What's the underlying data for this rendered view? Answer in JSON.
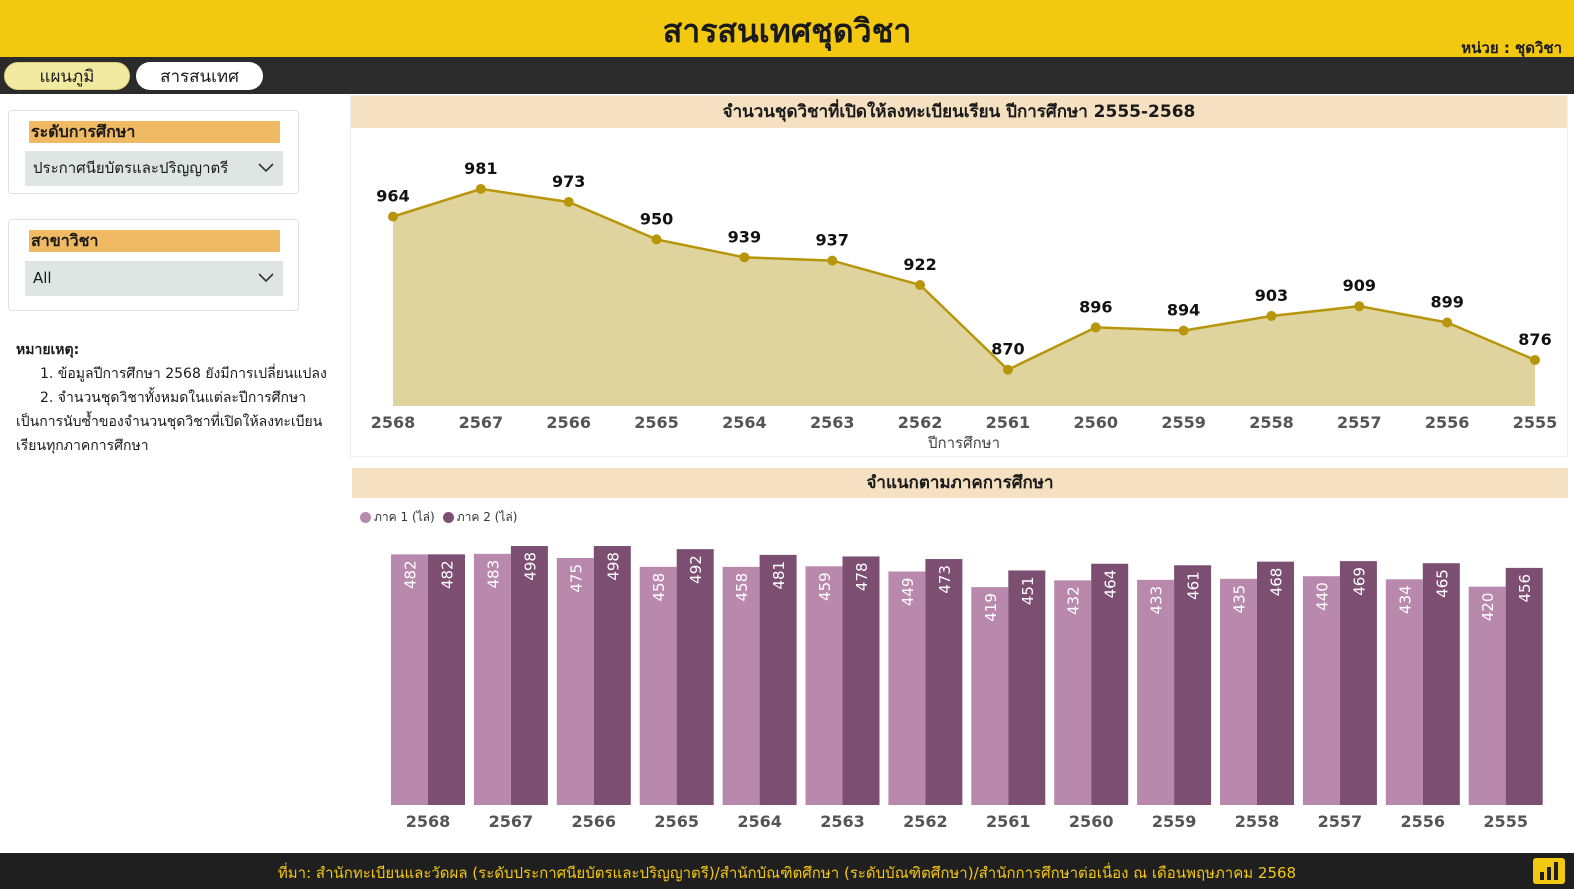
{
  "header": {
    "title": "สารสนเทศชุดวิชา",
    "unit": "หน่วย : ชุดวิชา"
  },
  "nav": {
    "tabs": [
      {
        "label": "แผนภูมิ"
      },
      {
        "label": "สารสนเทศ"
      }
    ]
  },
  "filters": {
    "level": {
      "label": "ระดับการศึกษา",
      "value": "ประกาศนียบัตรและปริญญาตรี"
    },
    "branch": {
      "label": "สาขาวิชา",
      "value": "All"
    }
  },
  "notes": {
    "title": "หมายเหตุ:",
    "items": [
      "1. ข้อมูลปีการศึกษา 2568 ยังมีการเปลี่ยนแปลง",
      "2. จำนวนชุดวิชาทั้งหมดในแต่ละปีการศึกษา เป็นการนับซ้ำของจำนวนชุดวิชาที่เปิดให้ลงทะเบียนเรียนทุกภาคการศึกษา"
    ]
  },
  "colors": {
    "brand": "#f2c811",
    "line": "#b8960c",
    "area": "#e0d49e",
    "term1": "#b889ad",
    "term2": "#7c4e72"
  },
  "footer": {
    "source": "ที่มา: สำนักทะเบียนและวัดผล (ระดับประกาศนียบัตรและปริญญาตรี)/สำนักบัณฑิตศึกษา (ระดับบัณฑิตศึกษา)/สำนักการศึกษาต่อเนื่อง ณ เดือนพฤษภาคม 2568"
  },
  "chart_data": [
    {
      "type": "area",
      "title": "จำนวนชุดวิชาที่เปิดให้ลงทะเบียนเรียน ปีการศึกษา 2555-2568",
      "xlabel": "ปีการศึกษา",
      "categories": [
        "2568",
        "2567",
        "2566",
        "2565",
        "2564",
        "2563",
        "2562",
        "2561",
        "2560",
        "2559",
        "2558",
        "2557",
        "2556",
        "2555"
      ],
      "values": [
        964,
        981,
        973,
        950,
        939,
        937,
        922,
        870,
        896,
        894,
        903,
        909,
        899,
        876
      ],
      "ylim": [
        860,
        1000
      ],
      "grid": false
    },
    {
      "type": "bar",
      "title": "จำแนกตามภาคการศึกษา",
      "categories": [
        "2568",
        "2567",
        "2566",
        "2565",
        "2564",
        "2563",
        "2562",
        "2561",
        "2560",
        "2559",
        "2558",
        "2557",
        "2556",
        "2555"
      ],
      "series": [
        {
          "name": "ภาค 1 (ไล่)",
          "values": [
            482,
            483,
            475,
            458,
            458,
            459,
            449,
            419,
            432,
            433,
            435,
            440,
            434,
            420
          ]
        },
        {
          "name": "ภาค 2 (ไล่)",
          "values": [
            482,
            498,
            498,
            492,
            481,
            478,
            473,
            451,
            464,
            461,
            468,
            469,
            465,
            456
          ]
        }
      ],
      "ylim": [
        0,
        500
      ],
      "legend": "top-left",
      "grid": false
    }
  ]
}
